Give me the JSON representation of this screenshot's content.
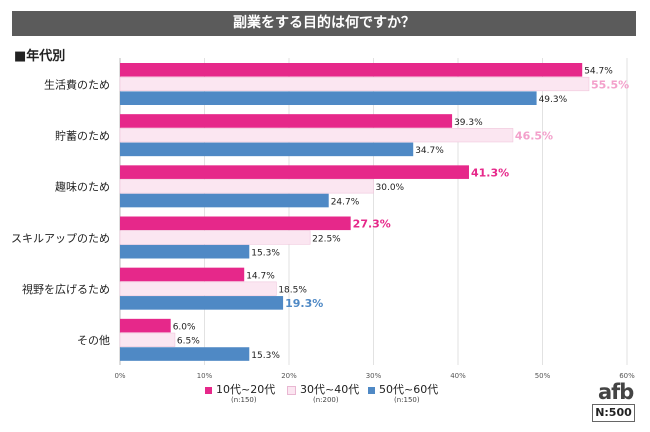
{
  "banner_title": "副業をする目的は何ですか？",
  "section_label": "■年代別",
  "colors": {
    "10s_20s": "#e6288a",
    "30s_40s": "#fbe6f1",
    "50s_60s": "#4f89c5",
    "highlight_30s_40s": "#f3a0cb"
  },
  "legend": [
    {
      "label": "10代~20代",
      "n": "(n:150)"
    },
    {
      "label": "30代~40代",
      "n": "(n:200)"
    },
    {
      "label": "50代~60代",
      "n": "(n:150)"
    }
  ],
  "logo": "afb",
  "sample_size": "N:500",
  "chart_data": {
    "type": "bar",
    "orientation": "horizontal",
    "title": "副業をする目的は何ですか？",
    "categories": [
      "生活費のため",
      "貯蓄のため",
      "趣味のため",
      "スキルアップのため",
      "視野を広げるため",
      "その他"
    ],
    "series": [
      {
        "name": "10代~20代",
        "values": [
          54.7,
          39.3,
          41.3,
          27.3,
          14.7,
          6.0
        ]
      },
      {
        "name": "30代~40代",
        "values": [
          55.5,
          46.5,
          30.0,
          22.5,
          18.5,
          6.5
        ]
      },
      {
        "name": "50代~60代",
        "values": [
          49.3,
          34.7,
          24.7,
          15.3,
          19.3,
          15.3
        ]
      }
    ],
    "highlighted": [
      [
        1,
        0
      ],
      [
        1,
        1
      ],
      [
        0,
        2
      ],
      [
        0,
        3
      ],
      [
        2,
        4
      ]
    ],
    "xlim": [
      0,
      60
    ],
    "xticks": [
      "0%",
      "10%",
      "20%",
      "30%",
      "40%",
      "50%",
      "60%"
    ],
    "value_suffix": "%",
    "grid": true,
    "legend_position": "bottom"
  }
}
